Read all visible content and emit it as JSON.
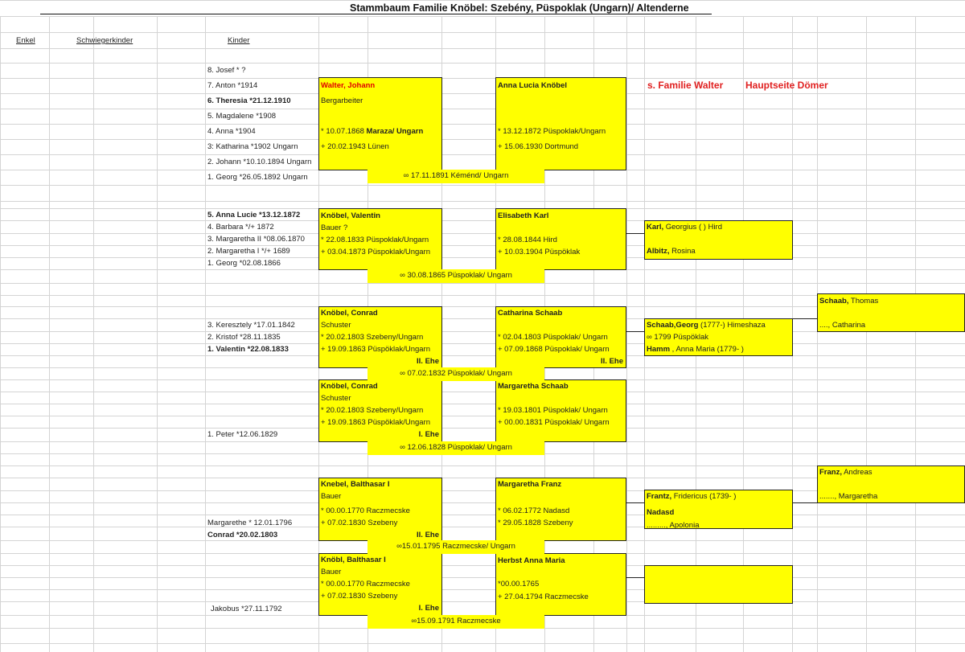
{
  "title": "Stammbaum Familie Knöbel: Szebény, Püspoklak (Ungarn)/ Altenderne",
  "headers": {
    "enkel": "Enkel",
    "schwiegerkinder": "Schwiegerkinder",
    "kinder": "Kinder"
  },
  "links": {
    "walter": "s. Familie Walter",
    "doemer": "Hauptseite Dömer"
  },
  "colors": {
    "box": "#ffff00",
    "accent_red": "#e00000"
  },
  "children": [
    [
      {
        "text": "8. Josef * ?",
        "bold": false
      },
      {
        "text": "7. Anton *1914",
        "bold": false
      },
      {
        "text": "6. Theresia *21.12.1910",
        "bold": true
      },
      {
        "text": "5. Magdalene *1908",
        "bold": false
      },
      {
        "text": "4. Anna *1904",
        "bold": false
      },
      {
        "text": "3: Katharina *1902  Ungarn",
        "bold": false
      },
      {
        "text": "2. Johann *10.10.1894  Ungarn",
        "bold": false
      },
      {
        "text": "1. Georg *26.05.1892  Ungarn",
        "bold": false
      }
    ],
    [
      {
        "text": "5. Anna Lucie *13.12.1872",
        "bold": true
      },
      {
        "text": "4. Barbara */+ 1872",
        "bold": false
      },
      {
        "text": "3. Margaretha II *08.06.1870",
        "bold": false
      },
      {
        "text": "2. Margaretha I  */+ 1689",
        "bold": false
      },
      {
        "text": "1. Georg *02.08.1866",
        "bold": false
      }
    ],
    [
      {
        "text": "3. Keresztely *17.01.1842",
        "bold": false
      },
      {
        "text": "2. Kristof *28.11.1835",
        "bold": false
      },
      {
        "text": "1. Valentin *22.08.1833",
        "bold": true
      }
    ],
    [
      {
        "text": "1. Peter *12.06.1829",
        "bold": false
      }
    ],
    [
      {
        "text": "Margarethe * 12.01.1796",
        "bold": false
      },
      {
        "text": "Conrad *20.02.1803",
        "bold": true
      }
    ],
    [
      {
        "text": "Jakobus *27.11.1792",
        "bold": false
      }
    ]
  ],
  "boxes": {
    "walter_johann": [
      [
        {
          "text": "Walter, Johann",
          "style": "red"
        }
      ],
      [
        {
          "text": "Bergarbeiter"
        }
      ],
      [
        {
          "text": "* 10.07.1868  "
        },
        {
          "text": "Maraza/ Ungarn",
          "style": "bold"
        }
      ],
      [
        {
          "text": "+ 20.02.1943  Lünen"
        }
      ]
    ],
    "anna_lucia": [
      [
        {
          "text": "Anna Lucia Knöbel",
          "style": "bold"
        }
      ],
      [
        {
          "text": "* 13.12.1872  Püspoklak/Ungarn"
        }
      ],
      [
        {
          "text": "+ 15.06.1930  Dortmund"
        }
      ]
    ],
    "valentin": [
      [
        {
          "text": "Knöbel, Valentin",
          "style": "bold"
        }
      ],
      [
        {
          "text": "Bauer ?"
        }
      ],
      [
        {
          "text": "* 22.08.1833  Püspoklak/Ungarn"
        }
      ],
      [
        {
          "text": "+ 03.04.1873  Püspoklak/Ungarn"
        }
      ]
    ],
    "elisabeth_karl": [
      [
        {
          "text": "Elisabeth Karl",
          "style": "bold"
        }
      ],
      [
        {
          "text": "* 28.08.1844  Hird"
        }
      ],
      [
        {
          "text": "+ 10.03.1904  Püspöklak"
        }
      ]
    ],
    "karl_georgius": [
      [
        {
          "text": "Karl,",
          "style": "bold"
        },
        {
          "text": " Georgius (             ) Hird"
        }
      ],
      [
        {
          "text": "Albitz,",
          "style": "bold"
        },
        {
          "text": "  Rosina"
        }
      ]
    ],
    "conrad_2": [
      [
        {
          "text": "Knöbel, Conrad",
          "style": "bold"
        }
      ],
      [
        {
          "text": "Schuster"
        }
      ],
      [
        {
          "text": "* 20.02.1803  Szebeny/Ungarn"
        }
      ],
      [
        {
          "text": "+ 19.09.1863  Püspöklak/Ungarn"
        }
      ],
      [
        {
          "text": "II. Ehe",
          "style": "bold"
        }
      ]
    ],
    "catharina_schaab": [
      [
        {
          "text": "Catharina Schaab",
          "style": "bold"
        }
      ],
      [
        {
          "text": "* 02.04.1803  Püspoklak/ Ungarn"
        }
      ],
      [
        {
          "text": "+ 07.09.1868  Püspoklak/ Ungarn"
        }
      ],
      [
        {
          "text": "II. Ehe",
          "style": "bold"
        }
      ]
    ],
    "schaab_georg": [
      [
        {
          "text": "Schaab,Georg",
          "style": "bold"
        },
        {
          "text": " (1777-)  Himeshaza"
        }
      ],
      [
        {
          "text": "∞ 1799 Püspöklak"
        }
      ],
      [
        {
          "text": "Hamm",
          "style": "bold"
        },
        {
          "text": " , Anna Maria (1779-   )"
        }
      ]
    ],
    "schaab_thomas": [
      [
        {
          "text": "Schaab,",
          "style": "bold"
        },
        {
          "text": " Thomas"
        }
      ],
      [
        {
          "text": "...., Catharina"
        }
      ]
    ],
    "conrad_1": [
      [
        {
          "text": "Knöbel, Conrad",
          "style": "bold"
        }
      ],
      [
        {
          "text": "Schuster"
        }
      ],
      [
        {
          "text": "* 20.02.1803  Szebeny/Ungarn"
        }
      ],
      [
        {
          "text": "+ 19.09.1863  Püspöklak/Ungarn"
        }
      ],
      [
        {
          "text": "I. Ehe",
          "style": "bold"
        }
      ]
    ],
    "margaretha_schaab": [
      [
        {
          "text": "Margaretha Schaab",
          "style": "bold"
        }
      ],
      [
        {
          "text": "* 19.03.1801  Püspoklak/ Ungarn"
        }
      ],
      [
        {
          "text": "+ 00.00.1831  Püspoklak/ Ungarn"
        }
      ]
    ],
    "knebel_balthasar": [
      [
        {
          "text": "Knebel, Balthasar I",
          "style": "bold"
        }
      ],
      [
        {
          "text": "Bauer"
        }
      ],
      [
        {
          "text": "* 00.00.1770  Raczmecske"
        }
      ],
      [
        {
          "text": "+ 07.02.1830  Szebeny"
        }
      ],
      [
        {
          "text": "II. Ehe",
          "style": "bold"
        }
      ]
    ],
    "margaretha_franz": [
      [
        {
          "text": "Margaretha Franz",
          "style": "bold"
        }
      ],
      [
        {
          "text": "* 06.02.1772  Nadasd"
        }
      ],
      [
        {
          "text": "* 29.05.1828  Szebeny"
        }
      ]
    ],
    "frantz_fridericus": [
      [
        {
          "text": "Frantz,",
          "style": "bold"
        },
        {
          "text": " Fridericus (1739-  )"
        }
      ],
      [
        {
          "text": "Nadasd",
          "style": "bold"
        }
      ],
      [
        {
          "text": "........., Apolonia"
        }
      ]
    ],
    "franz_andreas": [
      [
        {
          "text": "Franz,",
          "style": "bold"
        },
        {
          "text": " Andreas"
        }
      ],
      [
        {
          "text": "......., Margaretha"
        }
      ]
    ],
    "knoebl_balthasar": [
      [
        {
          "text": "Knöbl, Balthasar I",
          "style": "bold"
        }
      ],
      [
        {
          "text": "Bauer"
        }
      ],
      [
        {
          "text": "* 00.00.1770  Raczmecske"
        }
      ],
      [
        {
          "text": "+ 07.02.1830  Szebeny"
        }
      ],
      [
        {
          "text": "I. Ehe",
          "style": "bold"
        }
      ]
    ],
    "herbst_anna_maria": [
      [
        {
          "text": "Herbst Anna Maria",
          "style": "bold"
        }
      ],
      [
        {
          "text": "*00.00.1765"
        }
      ],
      [
        {
          "text": "+ 27.04.1794  Raczmecske"
        }
      ]
    ],
    "empty_ancestor": []
  },
  "marriages": [
    "∞ 17.11.1891 Kéménd/ Ungarn",
    "∞ 30.08.1865 Püspoklak/ Ungarn",
    "∞ 07.02.1832 Püspoklak/ Ungarn",
    "∞ 12.06.1828 Püspoklak/ Ungarn",
    "∞15.01.1795 Raczmecske/ Ungarn",
    "∞15.09.1791 Raczmecske"
  ]
}
